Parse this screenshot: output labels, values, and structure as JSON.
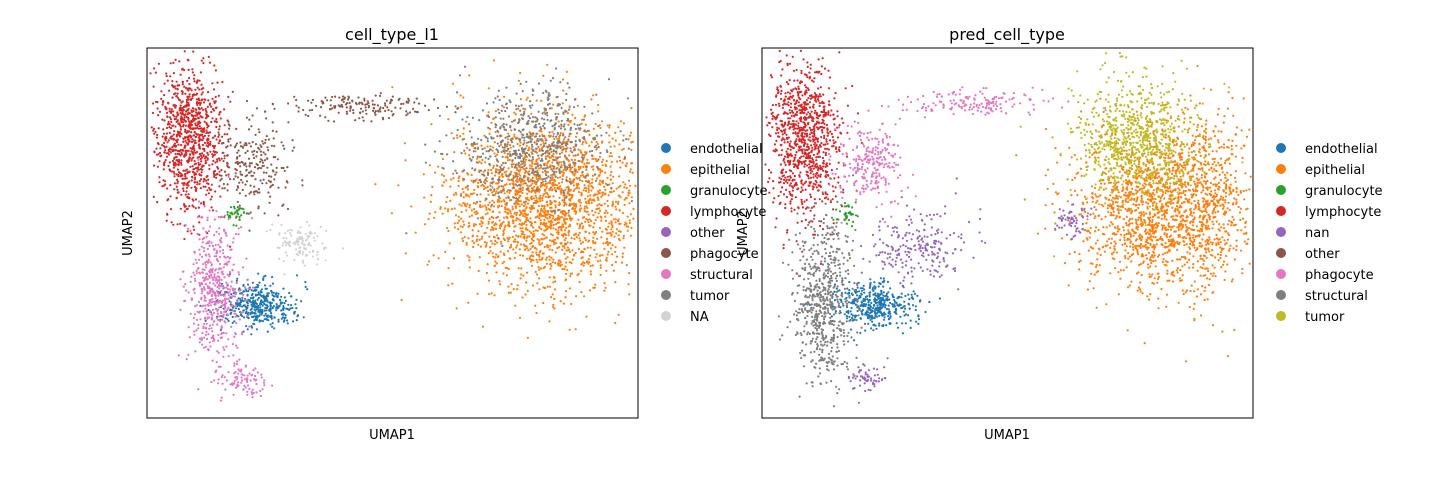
{
  "chart_data": [
    {
      "type": "scatter",
      "title": "cell_type_l1",
      "xlabel": "UMAP1",
      "ylabel": "UMAP2",
      "xlim": [
        -10,
        10
      ],
      "ylim": [
        -10,
        10
      ],
      "grid": false,
      "legend_position": "right-outside",
      "legend": [
        {
          "label": "endothelial",
          "color": "#1f77b4"
        },
        {
          "label": "epithelial",
          "color": "#ff7f0e"
        },
        {
          "label": "granulocyte",
          "color": "#2ca02c"
        },
        {
          "label": "lymphocyte",
          "color": "#d62728"
        },
        {
          "label": "other",
          "color": "#9467bd"
        },
        {
          "label": "phagocyte",
          "color": "#8c564b"
        },
        {
          "label": "structural",
          "color": "#e377c2"
        },
        {
          "label": "tumor",
          "color": "#7f7f7f"
        },
        {
          "label": "NA",
          "color": "#d3d3d3"
        }
      ],
      "clusters": [
        {
          "series": "epithelial",
          "cx": 6.3,
          "cy": 1.8,
          "sx": 2.0,
          "sy": 2.3,
          "weight": 2200
        },
        {
          "series": "tumor",
          "cx": 5.6,
          "cy": 4.6,
          "sx": 1.6,
          "sy": 1.5,
          "weight": 650
        },
        {
          "series": "lymphocyte",
          "cx": -8.3,
          "cy": 5.2,
          "sx": 0.7,
          "sy": 1.9,
          "weight": 950
        },
        {
          "series": "phagocyte",
          "cx": -5.8,
          "cy": 3.7,
          "sx": 0.8,
          "sy": 1.1,
          "weight": 230
        },
        {
          "series": "phagocyte",
          "cx": -1.3,
          "cy": 6.9,
          "sx": 1.6,
          "sy": 0.35,
          "weight": 170
        },
        {
          "series": "endothelial",
          "cx": -5.5,
          "cy": -3.9,
          "sx": 0.8,
          "sy": 0.6,
          "weight": 420
        },
        {
          "series": "structural",
          "cx": -7.3,
          "cy": -3.0,
          "sx": 0.55,
          "sy": 1.8,
          "weight": 520
        },
        {
          "series": "structural",
          "cx": -6.1,
          "cy": -7.9,
          "sx": 0.45,
          "sy": 0.45,
          "weight": 90
        },
        {
          "series": "granulocyte",
          "cx": -6.4,
          "cy": 1.0,
          "sx": 0.25,
          "sy": 0.3,
          "weight": 35
        },
        {
          "series": "NA",
          "cx": -3.8,
          "cy": -0.6,
          "sx": 0.6,
          "sy": 0.5,
          "weight": 120
        }
      ]
    },
    {
      "type": "scatter",
      "title": "pred_cell_type",
      "xlabel": "UMAP1",
      "ylabel": "UMAP2",
      "xlim": [
        -10,
        10
      ],
      "ylim": [
        -10,
        10
      ],
      "grid": false,
      "legend_position": "right-outside",
      "legend": [
        {
          "label": "endothelial",
          "color": "#1f77b4"
        },
        {
          "label": "epithelial",
          "color": "#ff7f0e"
        },
        {
          "label": "granulocyte",
          "color": "#2ca02c"
        },
        {
          "label": "lymphocyte",
          "color": "#d62728"
        },
        {
          "label": "nan",
          "color": "#9467bd"
        },
        {
          "label": "other",
          "color": "#8c564b"
        },
        {
          "label": "phagocyte",
          "color": "#e377c2"
        },
        {
          "label": "structural",
          "color": "#7f7f7f"
        },
        {
          "label": "tumor",
          "color": "#bcbd22"
        }
      ],
      "clusters": [
        {
          "series": "epithelial",
          "cx": 6.6,
          "cy": 1.5,
          "sx": 1.9,
          "sy": 2.3,
          "weight": 2000
        },
        {
          "series": "tumor",
          "cx": 5.3,
          "cy": 5.0,
          "sx": 1.2,
          "sy": 1.7,
          "weight": 800
        },
        {
          "series": "lymphocyte",
          "cx": -8.3,
          "cy": 5.0,
          "sx": 0.7,
          "sy": 2.0,
          "weight": 950
        },
        {
          "series": "phagocyte",
          "cx": -5.6,
          "cy": 3.8,
          "sx": 0.7,
          "sy": 1.0,
          "weight": 250
        },
        {
          "series": "phagocyte",
          "cx": -1.2,
          "cy": 7.0,
          "sx": 1.5,
          "sy": 0.35,
          "weight": 160
        },
        {
          "series": "nan",
          "cx": -3.6,
          "cy": -0.7,
          "sx": 1.0,
          "sy": 1.0,
          "weight": 230
        },
        {
          "series": "nan",
          "cx": 2.6,
          "cy": 0.6,
          "sx": 0.35,
          "sy": 0.5,
          "weight": 60
        },
        {
          "series": "nan",
          "cx": -5.7,
          "cy": -7.8,
          "sx": 0.35,
          "sy": 0.35,
          "weight": 60
        },
        {
          "series": "endothelial",
          "cx": -5.4,
          "cy": -3.9,
          "sx": 0.8,
          "sy": 0.6,
          "weight": 430
        },
        {
          "series": "structural",
          "cx": -7.5,
          "cy": -3.6,
          "sx": 0.6,
          "sy": 2.2,
          "weight": 650
        },
        {
          "series": "granulocyte",
          "cx": -6.5,
          "cy": 1.0,
          "sx": 0.25,
          "sy": 0.3,
          "weight": 35
        }
      ]
    }
  ]
}
